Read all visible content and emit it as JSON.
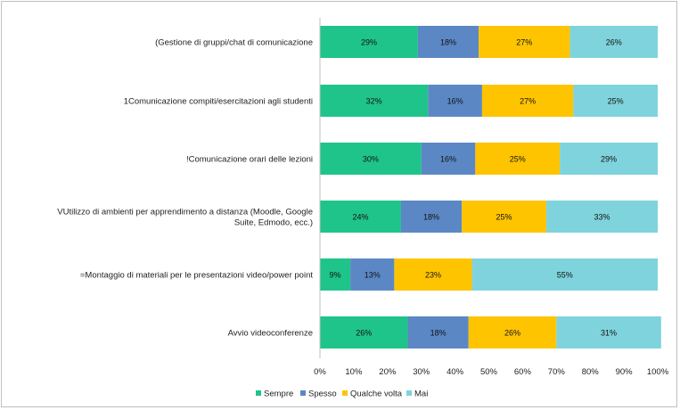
{
  "chart_data": {
    "type": "bar",
    "orientation": "horizontal",
    "stacked": true,
    "categories": [
      "(Gestione di gruppi/chat di comunicazione",
      "1Comunicazione compiti/esercitazioni agli studenti",
      "!Comunicazione orari delle lezioni",
      "VUtilizzo di ambienti per apprendimento a distanza (Moodle, Google Suite, Edmodo, ecc.)",
      "=Montaggio di materiali per le presentazioni video/power point",
      "Avvio videoconferenze"
    ],
    "series": [
      {
        "name": "Sempre",
        "color": "#1fc48a",
        "values": [
          29,
          32,
          30,
          24,
          9,
          26
        ],
        "labels": [
          "29%",
          "32%",
          "30%",
          "24%",
          "9%",
          "26%"
        ]
      },
      {
        "name": "Spesso",
        "color": "#5b88c4",
        "values": [
          18,
          16,
          16,
          18,
          13,
          18
        ],
        "labels": [
          "18%",
          "16%",
          "16%",
          "18%",
          "13%",
          "18%"
        ]
      },
      {
        "name": "Qualche volta",
        "color": "#ffc400",
        "values": [
          27,
          27,
          25,
          25,
          23,
          26
        ],
        "labels": [
          "27%",
          "27%",
          "25%",
          "25%",
          "23%",
          "26%"
        ]
      },
      {
        "name": "Mai",
        "color": "#7fd3dc",
        "values": [
          26,
          25,
          29,
          33,
          55,
          31
        ],
        "labels": [
          "26%",
          "25%",
          "29%",
          "33%",
          "55%",
          "31%"
        ]
      }
    ],
    "xlim": [
      0,
      100
    ],
    "xticks": [
      "0%",
      "10%",
      "20%",
      "30%",
      "40%",
      "50%",
      "60%",
      "70%",
      "80%",
      "90%",
      "100%"
    ],
    "grid": false,
    "legend_position": "bottom",
    "title": "",
    "xlabel": "",
    "ylabel": ""
  }
}
